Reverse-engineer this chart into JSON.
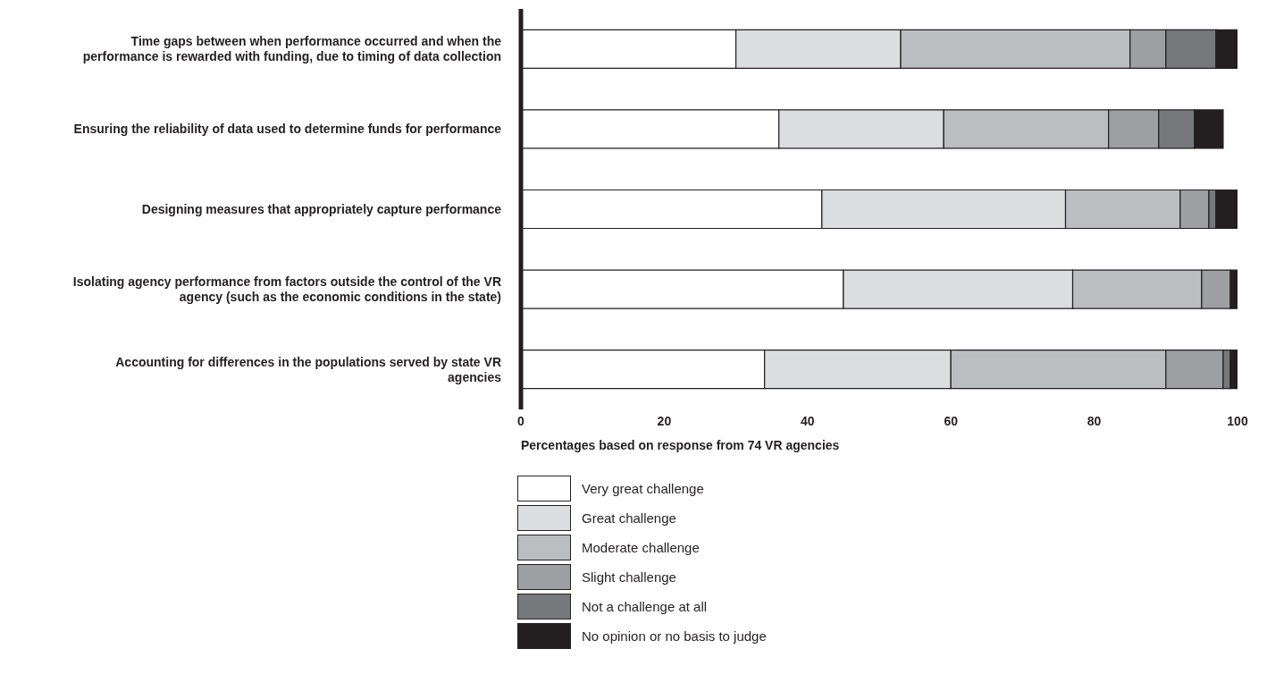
{
  "chart_data": {
    "type": "bar",
    "orientation": "horizontal",
    "stacked": true,
    "categories": [
      "Time gaps between when performance occurred and when the performance is rewarded with funding, due to timing of data collection",
      "Ensuring the reliability of data used to determine funds for performance",
      "Designing measures that appropriately capture performance",
      "Isolating agency performance from factors outside the control of the VR agency (such as the economic conditions in the state)",
      "Accounting for differences in the populations served by state VR agencies"
    ],
    "series": [
      {
        "name": "Very great challenge",
        "color": "#ffffff",
        "values": [
          30,
          36,
          42,
          45,
          34
        ]
      },
      {
        "name": "Great challenge",
        "color": "#dcdddf",
        "values": [
          23,
          23,
          34,
          32,
          26
        ]
      },
      {
        "name": "Moderate challenge",
        "color": "#bcbdc0",
        "values": [
          32,
          23,
          16,
          18,
          30
        ]
      },
      {
        "name": "Slight challenge",
        "color": "#9e9fa2",
        "values": [
          5,
          7,
          4,
          4,
          8
        ]
      },
      {
        "name": "Not a challenge at all",
        "color": "#77787b",
        "values": [
          7,
          5,
          1,
          0,
          1
        ]
      },
      {
        "name": "No opinion or no basis to judge",
        "color": "#231f20",
        "values": [
          3,
          4,
          3,
          1,
          1
        ]
      }
    ],
    "xlabel": "Percentages based on response from 74 VR agencies",
    "xlim": [
      0,
      100
    ],
    "xticks": [
      0,
      20,
      40,
      60,
      80,
      100
    ],
    "grid": false,
    "legend": "bottom"
  }
}
